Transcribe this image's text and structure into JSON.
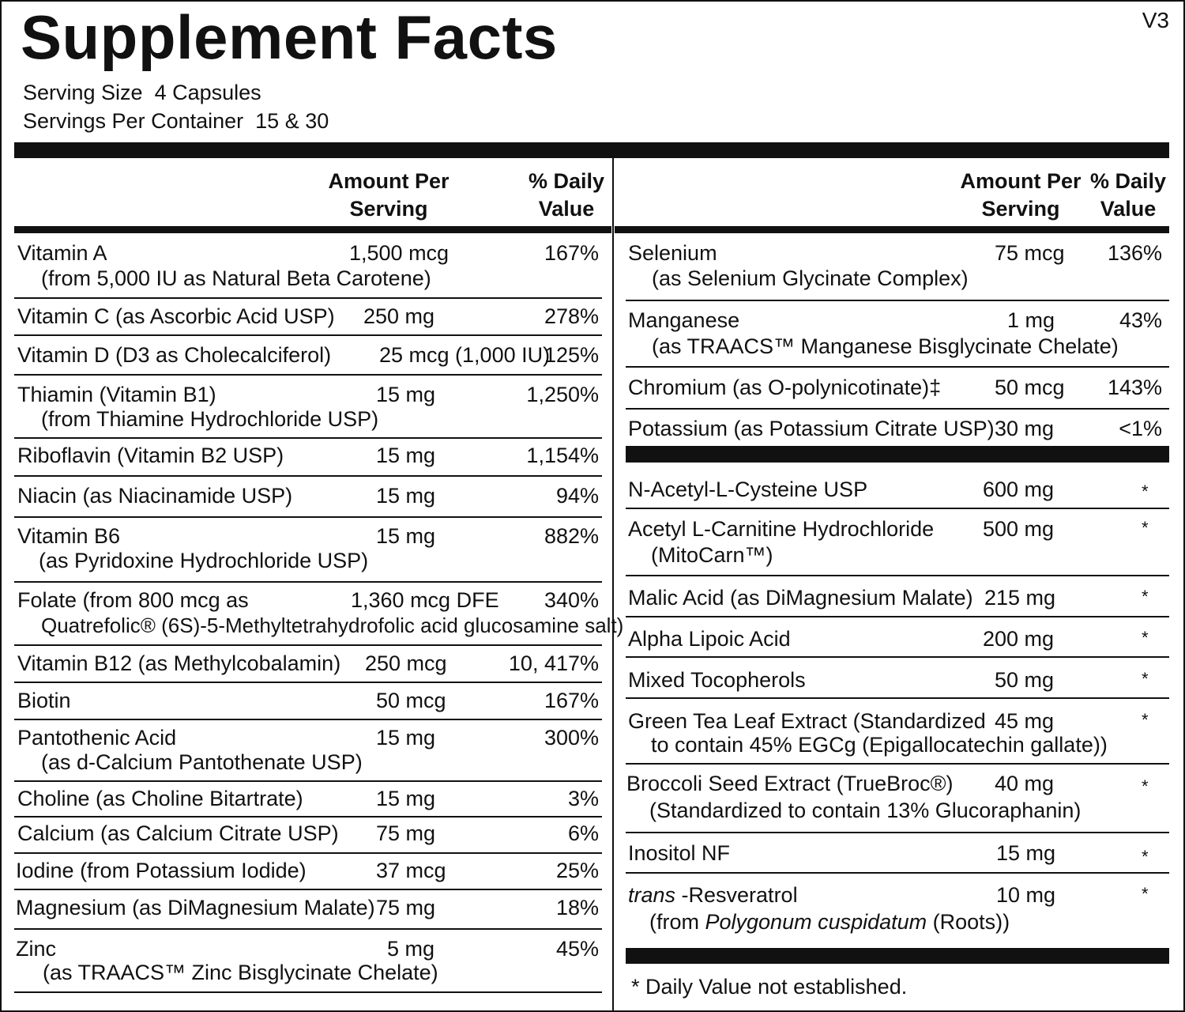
{
  "title": "Supplement Facts",
  "version": "V3",
  "serving_size_label": "Serving Size",
  "serving_size_value": "4 Capsules",
  "servings_per_container_label": "Servings Per Container",
  "servings_per_container_value": "15 & 30",
  "header": {
    "amount": "Amount Per\nServing",
    "dv": "% Daily\nValue"
  },
  "left_rows": [
    {
      "name": "Vitamin A",
      "sub": "(from 5,000 IU as Natural Beta Carotene)",
      "amount": "1,500 mcg",
      "dv": "167%"
    },
    {
      "name": "Vitamin C (as Ascorbic Acid USP)",
      "amount": "250 mg",
      "dv": "278%"
    },
    {
      "name": "Vitamin D (D3 as Cholecalciferol)",
      "amount": "25 mcg (1,000 IU)",
      "dv": "125%"
    },
    {
      "name": "Thiamin (Vitamin B1)",
      "sub": "(from Thiamine Hydrochloride USP)",
      "amount": "15 mg",
      "dv": "1,250%"
    },
    {
      "name": "Riboflavin (Vitamin B2 USP)",
      "amount": "15 mg",
      "dv": "1,154%"
    },
    {
      "name": "Niacin (as Niacinamide USP)",
      "amount": "15 mg",
      "dv": "94%"
    },
    {
      "name": "Vitamin B6",
      "sub": "(as Pyridoxine Hydrochloride USP)",
      "amount": "15 mg",
      "dv": "882%"
    },
    {
      "name": "Folate (from 800 mcg as",
      "sub": "Quatrefolic® (6S)-5-Methyltetrahydrofolic acid glucosamine salt)",
      "amount": "1,360 mcg DFE",
      "dv": "340%"
    },
    {
      "name": "Vitamin B12 (as Methylcobalamin)",
      "amount": "250 mcg",
      "dv": "10, 417%"
    },
    {
      "name": "Biotin",
      "amount": "50 mcg",
      "dv": "167%"
    },
    {
      "name": "Pantothenic Acid",
      "sub": "(as d-Calcium Pantothenate USP)",
      "amount": "15 mg",
      "dv": "300%"
    },
    {
      "name": "Choline (as Choline Bitartrate)",
      "amount": "15 mg",
      "dv": "3%"
    },
    {
      "name": "Calcium (as Calcium Citrate USP)",
      "amount": "75 mg",
      "dv": "6%"
    },
    {
      "name": "Iodine (from Potassium Iodide)",
      "amount": "37 mcg",
      "dv": "25%"
    },
    {
      "name": "Magnesium (as DiMagnesium Malate)",
      "amount": "75 mg",
      "dv": "18%"
    },
    {
      "name": "Zinc",
      "sub": "(as TRAACS™ Zinc Bisglycinate Chelate)",
      "amount": "5 mg",
      "dv": "45%"
    }
  ],
  "right_rows_top": [
    {
      "name": "Selenium",
      "sub": "(as Selenium Glycinate Complex)",
      "amount": "75 mcg",
      "dv": "136%"
    },
    {
      "name": "Manganese",
      "sub": "(as TRAACS™ Manganese Bisglycinate Chelate)",
      "amount": "1 mg",
      "dv": "43%"
    },
    {
      "name": "Chromium (as O-polynicotinate)‡",
      "amount": "50 mcg",
      "dv": "143%"
    },
    {
      "name": "Potassium (as Potassium Citrate USP)",
      "amount": "30 mg",
      "dv": "<1%"
    }
  ],
  "right_rows_bottom": [
    {
      "name": "N-Acetyl-L-Cysteine USP",
      "amount": "600 mg",
      "dv": "*"
    },
    {
      "name": "Acetyl L-Carnitine Hydrochloride",
      "sub": "(MitoCarn™)",
      "amount": "500 mg",
      "dv": "*"
    },
    {
      "name": "Malic Acid (as DiMagnesium Malate)",
      "amount": "215 mg",
      "dv": "*"
    },
    {
      "name": "Alpha Lipoic Acid",
      "amount": "200 mg",
      "dv": "*"
    },
    {
      "name": "Mixed Tocopherols",
      "amount": "50 mg",
      "dv": "*"
    },
    {
      "name": "Green Tea Leaf Extract (Standardized",
      "sub": "to contain 45% EGCg (Epigallocatechin gallate))",
      "amount": "45 mg",
      "dv": "*"
    },
    {
      "name": "Broccoli Seed Extract (TrueBroc®)",
      "sub": "(Standardized to contain 13% Glucoraphanin)",
      "amount": "40 mg",
      "dv": "*"
    },
    {
      "name": "Inositol NF",
      "amount": "15 mg",
      "dv": "*"
    },
    {
      "name_italic": "trans",
      "name": " -Resveratrol",
      "sub_pre": "(from ",
      "sub_italic": "Polygonum cuspidatum",
      "sub_post": " (Roots))",
      "amount": "10 mg",
      "dv": "*"
    }
  ],
  "footnote": "*  Daily Value not established."
}
